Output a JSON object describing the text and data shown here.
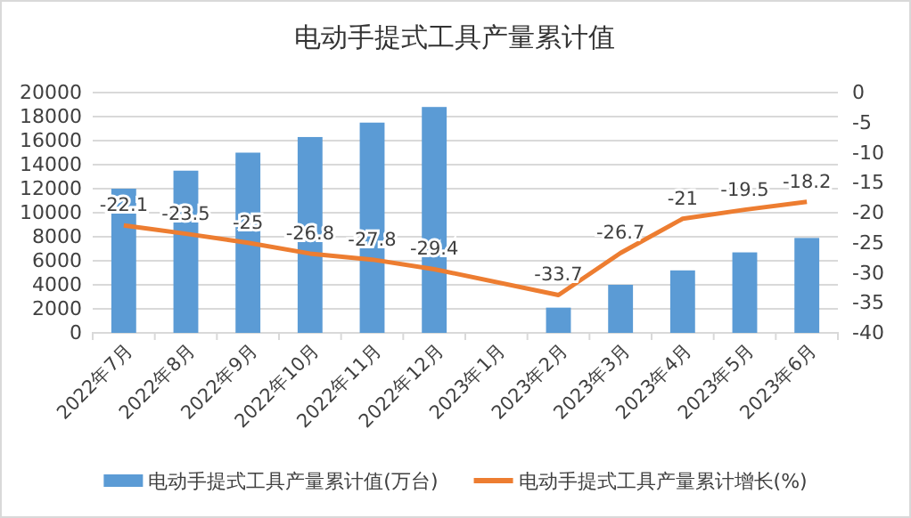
{
  "chart_data": {
    "type": "bar",
    "title": "电动手提式工具产量累计值",
    "categories": [
      "2022年7月",
      "2022年8月",
      "2022年9月",
      "2022年10月",
      "2022年11月",
      "2022年12月",
      "2023年1月",
      "2023年2月",
      "2023年3月",
      "2023年4月",
      "2023年5月",
      "2023年6月"
    ],
    "series": [
      {
        "name": "电动手提式工具产量累计值(万台)",
        "color": "#5b9bd5",
        "values": [
          12000,
          13500,
          15000,
          16300,
          17500,
          18800,
          null,
          2100,
          4000,
          5200,
          6700,
          7900
        ]
      },
      {
        "name": "电动手提式工具产量累计增长(%)",
        "type": "line",
        "axis": "y2",
        "color": "#ed7d31",
        "data_labels": true,
        "values": [
          -22.1,
          -23.5,
          -25,
          -26.8,
          -27.8,
          -29.4,
          null,
          -33.7,
          -26.7,
          -21,
          -19.5,
          -18.2
        ]
      }
    ],
    "ylim": [
      0,
      20000
    ],
    "yticks": [
      0,
      2000,
      4000,
      6000,
      8000,
      10000,
      12000,
      14000,
      16000,
      18000,
      20000
    ],
    "y2lim": [
      -40,
      0
    ],
    "y2ticks": [
      -40,
      -35,
      -30,
      -25,
      -20,
      -15,
      -10,
      -5,
      0
    ],
    "grid": "y",
    "legend": "bottom",
    "line_style": "solid",
    "marker": "none"
  }
}
